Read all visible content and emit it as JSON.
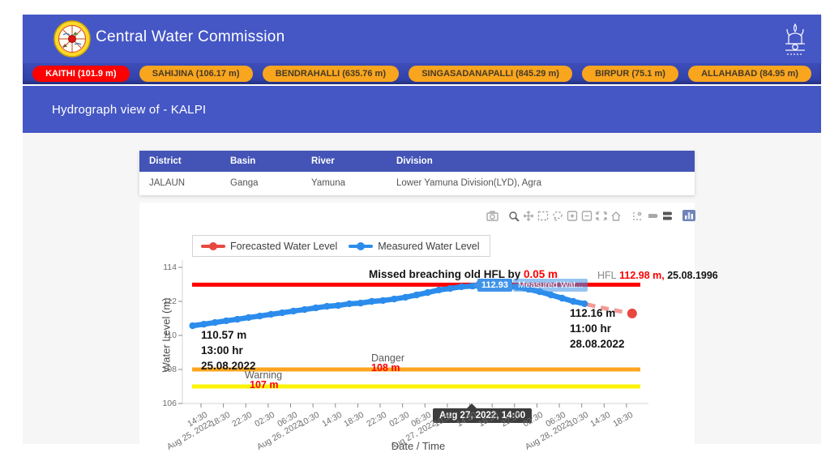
{
  "header": {
    "title": "Central Water Commission"
  },
  "stations": [
    {
      "label": "KAITHI (101.9 m)",
      "active": true
    },
    {
      "label": "SAHIJINA (106.17 m)",
      "active": false
    },
    {
      "label": "BENDRAHALLI (635.76 m)",
      "active": false
    },
    {
      "label": "SINGASADANAPALLI (845.29 m)",
      "active": false
    },
    {
      "label": "BIRPUR (75.1 m)",
      "active": false
    },
    {
      "label": "ALLAHABAD (84.95 m)",
      "active": false
    }
  ],
  "page_title": "Hydrograph view of - KALPI",
  "info_table": {
    "headers": [
      "District",
      "Basin",
      "River",
      "Division"
    ],
    "rows": [
      [
        "JALAUN",
        "Ganga",
        "Yamuna",
        "Lower Yamuna Division(LYD), Agra"
      ]
    ]
  },
  "chart_data": {
    "type": "line",
    "xlabel": "Date / Time",
    "ylabel": "Water Level (m)",
    "ylim": [
      105.8,
      114.6
    ],
    "yticks": [
      106,
      108,
      110,
      112,
      114
    ],
    "xticks": [
      {
        "label": "14:30",
        "date": "Aug 25, 2022"
      },
      {
        "label": "18:30"
      },
      {
        "label": "22:30"
      },
      {
        "label": "02:30"
      },
      {
        "label": "06:30",
        "date": "Aug 26, 2022"
      },
      {
        "label": "10:30"
      },
      {
        "label": "14:30"
      },
      {
        "label": "18:30"
      },
      {
        "label": "22:30"
      },
      {
        "label": "02:30"
      },
      {
        "label": "06:30",
        "date": "Aug 27, 2022"
      },
      {
        "label": "10:30"
      },
      {
        "label": "14:30"
      },
      {
        "label": "18:30"
      },
      {
        "label": "22:30"
      },
      {
        "label": "02:30"
      },
      {
        "label": "06:30",
        "date": "Aug 28, 2022"
      },
      {
        "label": "10:30"
      },
      {
        "label": "14:30"
      },
      {
        "label": "18:30"
      }
    ],
    "legend": [
      {
        "name": "Forecasted Water Level",
        "color": "#e8483f"
      },
      {
        "name": "Measured Water Level",
        "color": "#2b8cec"
      }
    ],
    "series": [
      {
        "name": "Measured Water Level",
        "color": "#2b8cec",
        "style": "solid",
        "points": [
          [
            13,
            110.57
          ],
          [
            15,
            110.66
          ],
          [
            17,
            110.76
          ],
          [
            19,
            110.86
          ],
          [
            21,
            110.95
          ],
          [
            23,
            111.05
          ],
          [
            25,
            111.14
          ],
          [
            27,
            111.24
          ],
          [
            29,
            111.33
          ],
          [
            31,
            111.43
          ],
          [
            33,
            111.52
          ],
          [
            35,
            111.62
          ],
          [
            37,
            111.71
          ],
          [
            39,
            111.76
          ],
          [
            41,
            111.86
          ],
          [
            43,
            111.9
          ],
          [
            45,
            112.0
          ],
          [
            47,
            112.05
          ],
          [
            49,
            112.14
          ],
          [
            51,
            112.24
          ],
          [
            53,
            112.38
          ],
          [
            55,
            112.52
          ],
          [
            57,
            112.67
          ],
          [
            59,
            112.76
          ],
          [
            61,
            112.86
          ],
          [
            63,
            112.9
          ],
          [
            65,
            112.93
          ],
          [
            67,
            112.93
          ],
          [
            69,
            112.9
          ],
          [
            71,
            112.83
          ],
          [
            73,
            112.71
          ],
          [
            75,
            112.57
          ],
          [
            77,
            112.38
          ],
          [
            79,
            112.19
          ],
          [
            81,
            112.0
          ],
          [
            83,
            111.86
          ]
        ]
      },
      {
        "name": "Forecasted Water Level",
        "color": "#e8483f",
        "style": "dashed",
        "points": [
          [
            83.5,
            111.82
          ],
          [
            85.5,
            111.67
          ],
          [
            88,
            111.5
          ],
          [
            91.5,
            111.29
          ]
        ]
      }
    ],
    "ref_lines": [
      {
        "name": "HFL",
        "value": 112.98,
        "color": "#fe0000"
      },
      {
        "name": "Danger",
        "value": 108,
        "color": "#ffa51f"
      },
      {
        "name": "Warning",
        "value": 107,
        "color": "#fcf400"
      }
    ],
    "annotations": {
      "missed": {
        "prefix": "Missed breaching old HFL by ",
        "value": "0.05 m"
      },
      "hfl": {
        "label": "HFL",
        "value": "112.98 m,",
        "date": " 25.08.1996"
      },
      "start_point": {
        "lines": [
          "110.57 m",
          "13:00 hr",
          "25.08.2022"
        ]
      },
      "forecast_point": {
        "lines": [
          "112.16 m",
          "11:00 hr",
          "28.08.2022"
        ]
      },
      "danger": {
        "label": "Danger",
        "value": "108 m"
      },
      "warning": {
        "label": "Warning",
        "value": "107 m"
      }
    },
    "tooltips": {
      "point": {
        "value": "112.93",
        "series": "Measured Wat..."
      },
      "axis": {
        "label": "Aug 27, 2022, 14:00"
      }
    }
  }
}
